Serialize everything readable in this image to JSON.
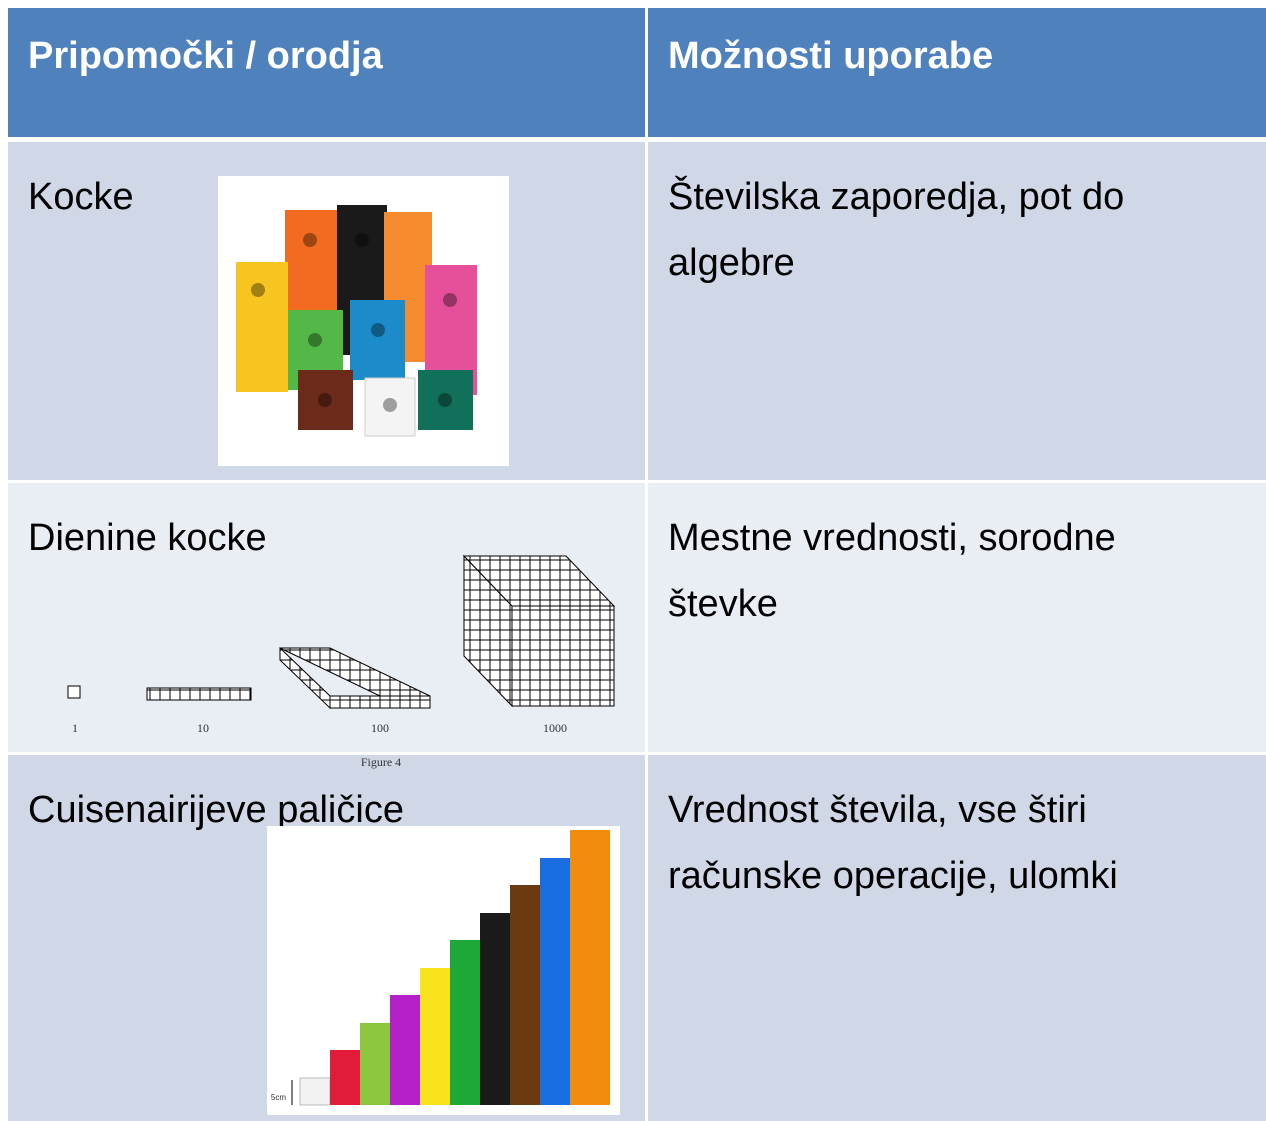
{
  "table": {
    "header": [
      "Pripomočki / orodja",
      "Možnosti uporabe"
    ],
    "rows": [
      {
        "tool": "Kocke",
        "use": "Številska zaporedja, pot do algebre"
      },
      {
        "tool": "Dienine kocke",
        "use": "Mestne vrednosti, sorodne števke",
        "figure_labels": [
          "1",
          "10",
          "100",
          "1000"
        ],
        "figure_caption": "Figure 4"
      },
      {
        "tool": "Cuisenairijeve paličice",
        "use": "Vrednost števila, vse štiri računske operacije, ulomki",
        "figure_label": "5cm"
      }
    ]
  }
}
